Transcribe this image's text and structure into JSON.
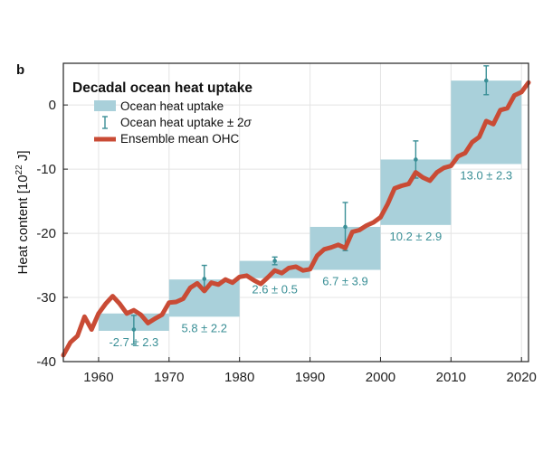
{
  "chart_data": {
    "type": "line",
    "panel_label": "b",
    "title": "Decadal ocean heat uptake",
    "ylabel_main": "Heat content [10",
    "ylabel_exp": "22",
    "ylabel_unit": " J]",
    "xlabel": "",
    "xlim": [
      1955,
      2021
    ],
    "ylim": [
      -40,
      6.5
    ],
    "xticks": [
      "1960",
      "1970",
      "1980",
      "1990",
      "2000",
      "2010",
      "2020"
    ],
    "yticks": [
      "0",
      "-10",
      "-20",
      "-30",
      "-40"
    ],
    "grid": true,
    "legend_position": "top-left",
    "legend": {
      "box": "Ocean heat uptake",
      "errorbar": "Ocean heat uptake ± 2",
      "errorbar_symbol": "σ",
      "line": "Ensemble mean OHC"
    },
    "colors": {
      "line": "#c94b35",
      "box_fill": "#a9d0da",
      "errorbar": "#3a8f96",
      "label": "#3a8f96",
      "grid": "#e4e4e4"
    },
    "decadal_boxes": [
      {
        "x0": 1960,
        "x1": 1970,
        "y0": -32.5,
        "y1": -35.2,
        "mid": 1965,
        "center": -35.0,
        "err_lo": -37.3,
        "err_hi": -32.8,
        "label": "-2.7 ± 2.3"
      },
      {
        "x0": 1970,
        "x1": 1980,
        "y0": -27.2,
        "y1": -33.0,
        "mid": 1975,
        "center": -27.1,
        "err_lo": -29.0,
        "err_hi": -25.0,
        "label": "5.8 ± 2.2"
      },
      {
        "x0": 1980,
        "x1": 1990,
        "y0": -24.3,
        "y1": -27.0,
        "mid": 1985,
        "center": -24.3,
        "err_lo": -24.9,
        "err_hi": -23.7,
        "label": "2.6 ± 0.5"
      },
      {
        "x0": 1990,
        "x1": 2000,
        "y0": -19.0,
        "y1": -25.7,
        "mid": 1995,
        "center": -19.0,
        "err_lo": -22.7,
        "err_hi": -15.2,
        "label": "6.7 ± 3.9"
      },
      {
        "x0": 2000,
        "x1": 2010,
        "y0": -8.5,
        "y1": -18.7,
        "mid": 2005,
        "center": -8.5,
        "err_lo": -11.4,
        "err_hi": -5.6,
        "label": "10.2 ± 2.9"
      },
      {
        "x0": 2010,
        "x1": 2020,
        "y0": 3.8,
        "y1": -9.2,
        "mid": 2015,
        "center": 3.8,
        "err_lo": 1.6,
        "err_hi": 6.1,
        "label": "13.0 ± 2.3"
      }
    ],
    "series": [
      {
        "name": "Ensemble mean OHC",
        "x": [
          1955,
          1956,
          1957,
          1958,
          1959,
          1960,
          1961,
          1962,
          1963,
          1964,
          1965,
          1966,
          1967,
          1968,
          1969,
          1970,
          1971,
          1972,
          1973,
          1974,
          1975,
          1976,
          1977,
          1978,
          1979,
          1980,
          1981,
          1982,
          1983,
          1984,
          1985,
          1986,
          1987,
          1988,
          1989,
          1990,
          1991,
          1992,
          1993,
          1994,
          1995,
          1996,
          1997,
          1998,
          1999,
          2000,
          2001,
          2002,
          2003,
          2004,
          2005,
          2006,
          2007,
          2008,
          2009,
          2010,
          2011,
          2012,
          2013,
          2014,
          2015,
          2016,
          2017,
          2018,
          2019,
          2020,
          2021
        ],
        "y": [
          -39.0,
          -37.0,
          -36.0,
          -33.0,
          -35.0,
          -32.5,
          -31.0,
          -29.8,
          -31.0,
          -32.5,
          -32.0,
          -32.7,
          -34.0,
          -33.3,
          -32.7,
          -30.8,
          -30.7,
          -30.2,
          -28.5,
          -27.8,
          -29.0,
          -27.7,
          -28.0,
          -27.2,
          -27.7,
          -26.8,
          -26.6,
          -27.3,
          -27.9,
          -26.9,
          -25.8,
          -26.2,
          -25.4,
          -25.2,
          -25.8,
          -25.6,
          -23.5,
          -22.5,
          -22.2,
          -21.8,
          -22.3,
          -19.8,
          -19.5,
          -18.8,
          -18.3,
          -17.5,
          -15.5,
          -13.0,
          -12.6,
          -12.3,
          -10.5,
          -11.3,
          -11.8,
          -10.5,
          -9.8,
          -9.5,
          -8.0,
          -7.5,
          -5.8,
          -5.0,
          -2.5,
          -3.0,
          -0.8,
          -0.5,
          1.5,
          2.0,
          3.5
        ]
      }
    ]
  }
}
